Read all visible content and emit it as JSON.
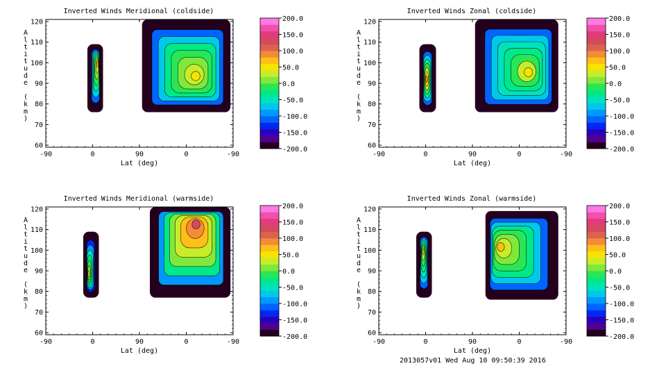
{
  "footer": "2013057v01 Wed Aug 10 09:50:39 2016",
  "chart_data": [
    {
      "type": "heatmap",
      "title": "Inverted Winds Meridional (coldside)",
      "xlabel": "Lat (deg)",
      "ylabel": "Altitude (km)",
      "xticks": [
        "-90",
        "0",
        "90",
        "0",
        "-90"
      ],
      "yticks": [
        "60",
        "70",
        "80",
        "90",
        "100",
        "110",
        "120"
      ],
      "ylim": [
        59,
        121
      ],
      "fields": [
        {
          "region": "left",
          "lat_range": [
            -10,
            20
          ],
          "alt_range": [
            76,
            109
          ],
          "peak": [
            10,
            100,
            60
          ]
        },
        {
          "region": "right",
          "lat_range": [
            95,
            265
          ],
          "alt_range": [
            76,
            121
          ],
          "peak": [
            200,
            93,
            55
          ]
        }
      ]
    },
    {
      "type": "heatmap",
      "title": "Inverted Winds Zonal (coldside)",
      "xlabel": "Lat (deg)",
      "ylabel": "Altitude (km)",
      "xticks": [
        "-90",
        "0",
        "90",
        "0",
        "-90"
      ],
      "yticks": [
        "60",
        "70",
        "80",
        "90",
        "100",
        "110",
        "120"
      ],
      "ylim": [
        59,
        121
      ],
      "fields": [
        {
          "region": "left",
          "lat_range": [
            -12,
            20
          ],
          "alt_range": [
            76,
            109
          ],
          "peak": [
            2,
            92,
            70
          ]
        },
        {
          "region": "right",
          "lat_range": [
            95,
            255
          ],
          "alt_range": [
            76,
            121
          ],
          "peak": [
            200,
            95,
            40
          ]
        }
      ]
    },
    {
      "type": "heatmap",
      "title": "Inverted Winds Meridional (warmside)",
      "xlabel": "Lat (deg)",
      "ylabel": "Altitude (km)",
      "xticks": [
        "-90",
        "0",
        "90",
        "0",
        "-90"
      ],
      "yticks": [
        "60",
        "70",
        "80",
        "90",
        "100",
        "110",
        "120"
      ],
      "ylim": [
        59,
        121
      ],
      "fields": [
        {
          "region": "left",
          "lat_range": [
            -18,
            12
          ],
          "alt_range": [
            77,
            109
          ],
          "peak": [
            -8,
            88,
            30
          ]
        },
        {
          "region": "right",
          "lat_range": [
            110,
            265
          ],
          "alt_range": [
            77,
            121
          ],
          "peak": [
            200,
            114,
            120
          ]
        }
      ]
    },
    {
      "type": "heatmap",
      "title": "Inverted Winds Zonal (warmside)",
      "xlabel": "Lat (deg)",
      "ylabel": "Altitude (km)",
      "xticks": [
        "-90",
        "0",
        "90",
        "0",
        "-90"
      ],
      "yticks": [
        "60",
        "70",
        "80",
        "90",
        "100",
        "110",
        "120"
      ],
      "ylim": [
        59,
        121
      ],
      "fields": [
        {
          "region": "left",
          "lat_range": [
            -18,
            12
          ],
          "alt_range": [
            77,
            109
          ],
          "peak": [
            -5,
            100,
            40
          ]
        },
        {
          "region": "right",
          "lat_range": [
            115,
            255
          ],
          "alt_range": [
            76,
            119
          ],
          "peak": [
            140,
            102,
            60
          ]
        }
      ]
    }
  ],
  "colorbar": {
    "tick_labels": [
      "200.0",
      "150.0",
      "100.0",
      "50.0",
      "0.0",
      "-50.0",
      "-100.0",
      "-150.0",
      "-200.0"
    ],
    "range": [
      -200,
      200
    ],
    "colors": [
      "#24001e",
      "#520090",
      "#2a00c0",
      "#0028f0",
      "#0064ff",
      "#0098ff",
      "#00c8ea",
      "#00e2bc",
      "#00e888",
      "#2ae656",
      "#80e83a",
      "#c8ec2a",
      "#f6e400",
      "#ffbe18",
      "#f48c36",
      "#dc6250",
      "#d24a5e",
      "#e23a7a",
      "#f050a8",
      "#ff78e6"
    ]
  }
}
